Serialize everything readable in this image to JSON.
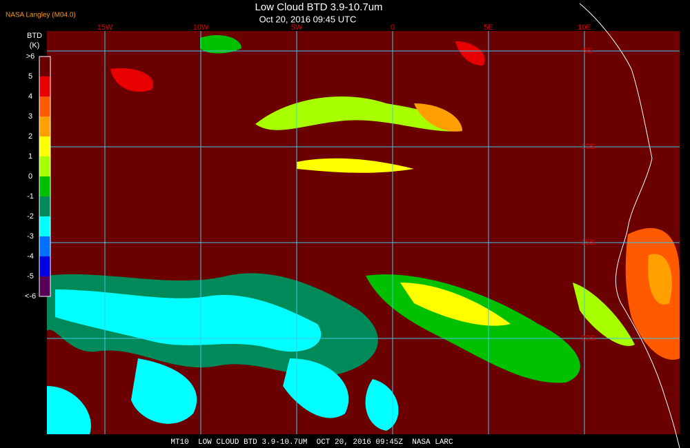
{
  "header": {
    "title": "Low Cloud BTD 3.9-10.7um",
    "subtitle": "Oct 20, 2016 09:45 UTC",
    "source": "NASA Langley (M04.0)"
  },
  "legend": {
    "title": [
      "BTD",
      "(K)"
    ],
    "labels": [
      ">6",
      "5",
      "4",
      "3",
      "2",
      "1",
      "0",
      "-1",
      "-2",
      "-3",
      "-4",
      "-5",
      "<-6"
    ],
    "colors": [
      "#6b0000",
      "#e80000",
      "#ff5a00",
      "#ffa000",
      "#ffff00",
      "#a8ff00",
      "#00c000",
      "#008a5a",
      "#00ffff",
      "#0070ff",
      "#0000e0",
      "#580058"
    ]
  },
  "grid": {
    "longitudes": [
      "15W",
      "10W",
      "5W",
      "0",
      "5E",
      "10E"
    ],
    "latitudes": [
      "5S",
      "10S",
      "15S",
      "20S"
    ]
  },
  "footer": "MT10  LOW CLOUD BTD 3.9-10.7UM  OCT 20, 2016 09:45Z  NASA LARC"
}
